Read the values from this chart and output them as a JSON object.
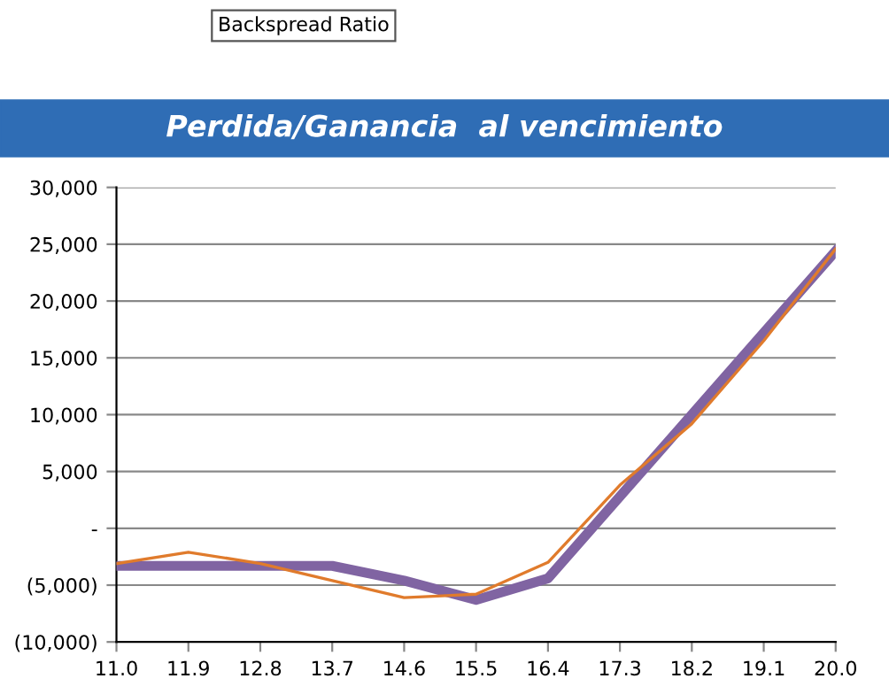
{
  "chart_data": {
    "type": "line",
    "title": "Perdida/Ganancia  al vencimiento",
    "annotations": [
      "Backspread Ratio"
    ],
    "categories": [
      "11.0",
      "11.9",
      "12.8",
      "13.7",
      "14.6",
      "15.5",
      "16.4",
      "17.3",
      "18.2",
      "19.1",
      "20.0"
    ],
    "series": [
      {
        "color": "#e07b2c",
        "values": [
          -3100,
          -2100,
          -3100,
          -4600,
          -6100,
          -5800,
          -3000,
          3800,
          9200,
          16500,
          24600
        ]
      },
      {
        "color": "#8064a2",
        "values": [
          -3300,
          -3300,
          -3300,
          -3300,
          -4600,
          -6300,
          -4400,
          2800,
          10000,
          17200,
          24400
        ]
      }
    ],
    "ylim": [
      -10000,
      30000
    ],
    "yticks": [
      {
        "value": -10000,
        "label": "(10,000)"
      },
      {
        "value": -5000,
        "label": "(5,000)"
      },
      {
        "value": 0,
        "label": "-"
      },
      {
        "value": 5000,
        "label": "5,000"
      },
      {
        "value": 10000,
        "label": "10,000"
      },
      {
        "value": 15000,
        "label": "15,000"
      },
      {
        "value": 20000,
        "label": "20,000"
      },
      {
        "value": 25000,
        "label": "25,000"
      },
      {
        "value": 30000,
        "label": "30,000"
      }
    ],
    "grid": "y",
    "legend": false,
    "marker": "none",
    "line_style": "solid"
  }
}
